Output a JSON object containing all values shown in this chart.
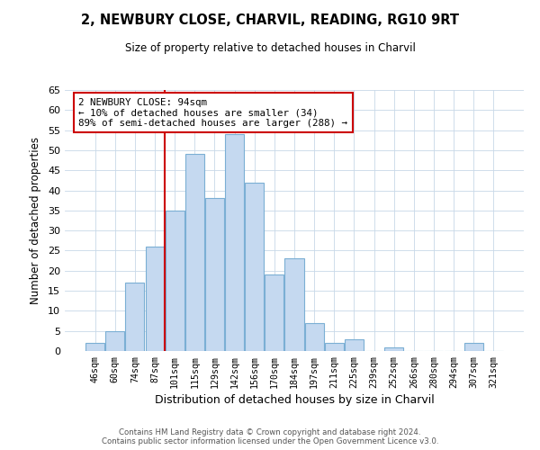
{
  "title": "2, NEWBURY CLOSE, CHARVIL, READING, RG10 9RT",
  "subtitle": "Size of property relative to detached houses in Charvil",
  "xlabel": "Distribution of detached houses by size in Charvil",
  "ylabel": "Number of detached properties",
  "bin_labels": [
    "46sqm",
    "60sqm",
    "74sqm",
    "87sqm",
    "101sqm",
    "115sqm",
    "129sqm",
    "142sqm",
    "156sqm",
    "170sqm",
    "184sqm",
    "197sqm",
    "211sqm",
    "225sqm",
    "239sqm",
    "252sqm",
    "266sqm",
    "280sqm",
    "294sqm",
    "307sqm",
    "321sqm"
  ],
  "bar_values": [
    2,
    5,
    17,
    26,
    35,
    49,
    38,
    54,
    42,
    19,
    23,
    7,
    2,
    3,
    0,
    1,
    0,
    0,
    0,
    2,
    0
  ],
  "bar_color": "#c5d9f0",
  "bar_edgecolor": "#7bafd4",
  "property_line_x": 3.5,
  "annotation_line": "2 NEWBURY CLOSE: 94sqm",
  "annotation_line2": "← 10% of detached houses are smaller (34)",
  "annotation_line3": "89% of semi-detached houses are larger (288) →",
  "annotation_box_color": "#cc0000",
  "ylim": [
    0,
    65
  ],
  "yticks": [
    0,
    5,
    10,
    15,
    20,
    25,
    30,
    35,
    40,
    45,
    50,
    55,
    60,
    65
  ],
  "footer_line1": "Contains HM Land Registry data © Crown copyright and database right 2024.",
  "footer_line2": "Contains public sector information licensed under the Open Government Licence v3.0.",
  "background_color": "#ffffff",
  "grid_color": "#c8d8e8"
}
